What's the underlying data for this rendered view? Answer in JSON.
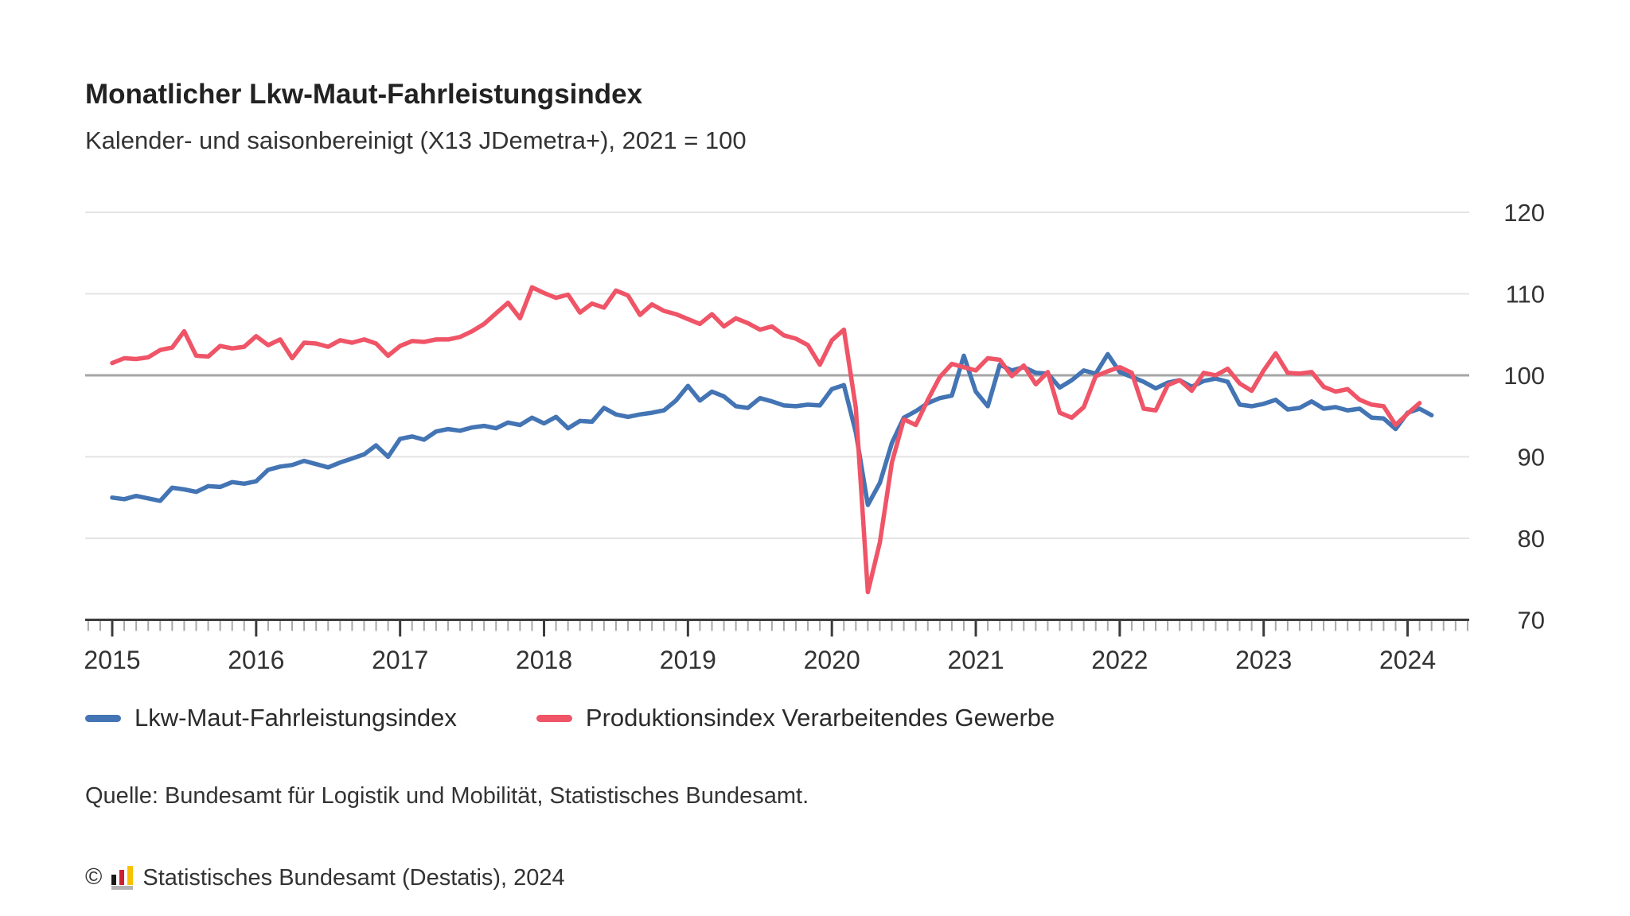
{
  "header": {
    "title": "Monatlicher Lkw-Maut-Fahrleistungsindex",
    "subtitle": "Kalender- und saisonbereinigt (X13 JDemetra+), 2021 = 100"
  },
  "chart_data": {
    "type": "line",
    "title": "Monatlicher Lkw-Maut-Fahrleistungsindex",
    "subtitle": "Kalender- und saisonbereinigt (X13 JDemetra+), 2021 = 100",
    "frequency": "monthly",
    "x_start": "2015-01",
    "x_tick_years": [
      2015,
      2016,
      2017,
      2018,
      2019,
      2020,
      2021,
      2022,
      2023,
      2024
    ],
    "ylim": [
      70,
      120
    ],
    "y_ticks": [
      70,
      80,
      90,
      100,
      110,
      120
    ],
    "grid": true,
    "highlight_gridline": 100,
    "legend_position": "bottom",
    "series": [
      {
        "name": "Lkw-Maut-Fahrleistungsindex",
        "color": "#4374b4",
        "values": [
          85.0,
          84.8,
          85.2,
          84.9,
          84.6,
          86.2,
          86.0,
          85.7,
          86.4,
          86.3,
          86.9,
          86.7,
          87.0,
          88.4,
          88.8,
          89.0,
          89.5,
          89.1,
          88.7,
          89.3,
          89.8,
          90.3,
          91.4,
          90.0,
          92.2,
          92.5,
          92.1,
          93.1,
          93.4,
          93.2,
          93.6,
          93.8,
          93.5,
          94.2,
          93.9,
          94.8,
          94.1,
          94.9,
          93.5,
          94.4,
          94.3,
          96.0,
          95.2,
          94.9,
          95.2,
          95.4,
          95.7,
          96.9,
          98.7,
          96.9,
          98.0,
          97.4,
          96.2,
          96.0,
          97.2,
          96.8,
          96.3,
          96.2,
          96.4,
          96.3,
          98.3,
          98.8,
          93.0,
          84.1,
          86.8,
          91.7,
          94.8,
          95.6,
          96.6,
          97.2,
          97.5,
          102.4,
          98.0,
          96.2,
          101.3,
          100.6,
          101.0,
          100.3,
          100.2,
          98.5,
          99.4,
          100.6,
          100.2,
          102.6,
          100.4,
          99.8,
          99.2,
          98.4,
          99.1,
          99.4,
          98.6,
          99.3,
          99.6,
          99.2,
          96.4,
          96.2,
          96.5,
          97.0,
          95.8,
          96.0,
          96.8,
          95.9,
          96.1,
          95.7,
          95.9,
          94.8,
          94.7,
          93.4,
          95.4,
          95.9,
          95.1
        ]
      },
      {
        "name": "Produktionsindex Verarbeitendes Gewerbe",
        "color": "#ef5467",
        "values": [
          101.5,
          102.1,
          102.0,
          102.2,
          103.1,
          103.4,
          105.4,
          102.4,
          102.3,
          103.6,
          103.3,
          103.5,
          104.8,
          103.7,
          104.4,
          102.1,
          104.0,
          103.9,
          103.5,
          104.3,
          104.0,
          104.4,
          103.9,
          102.4,
          103.6,
          104.2,
          104.1,
          104.4,
          104.4,
          104.7,
          105.4,
          106.3,
          107.6,
          108.9,
          107.0,
          110.8,
          110.1,
          109.5,
          109.9,
          107.7,
          108.8,
          108.3,
          110.4,
          109.8,
          107.4,
          108.7,
          107.9,
          107.5,
          106.9,
          106.3,
          107.5,
          106.0,
          107.0,
          106.4,
          105.6,
          106.0,
          104.9,
          104.5,
          103.7,
          101.3,
          104.3,
          105.6,
          96.0,
          73.4,
          79.5,
          89.3,
          94.6,
          93.9,
          97.0,
          99.8,
          101.4,
          101.0,
          100.6,
          102.1,
          101.9,
          99.9,
          101.2,
          98.9,
          100.4,
          95.4,
          94.8,
          96.1,
          99.9,
          100.5,
          101.0,
          100.3,
          95.9,
          95.7,
          98.8,
          99.4,
          98.1,
          100.3,
          100.0,
          100.8,
          99.0,
          98.1,
          100.6,
          102.7,
          100.3,
          100.2,
          100.4,
          98.6,
          98.0,
          98.3,
          97.0,
          96.4,
          96.2,
          93.9,
          95.3,
          96.6
        ]
      }
    ]
  },
  "source": {
    "text": "Quelle: Bundesamt für Logistik und Mobilität, Statistisches Bundesamt."
  },
  "footer": {
    "copyright_symbol": "©",
    "logo_icon": "destatis-bar-chart-icon",
    "logo_colors": [
      "#1a1a1a",
      "#cc2030",
      "#f8c200",
      "#b3b3b3"
    ],
    "text": "Statistisches Bundesamt (Destatis), 2024"
  }
}
